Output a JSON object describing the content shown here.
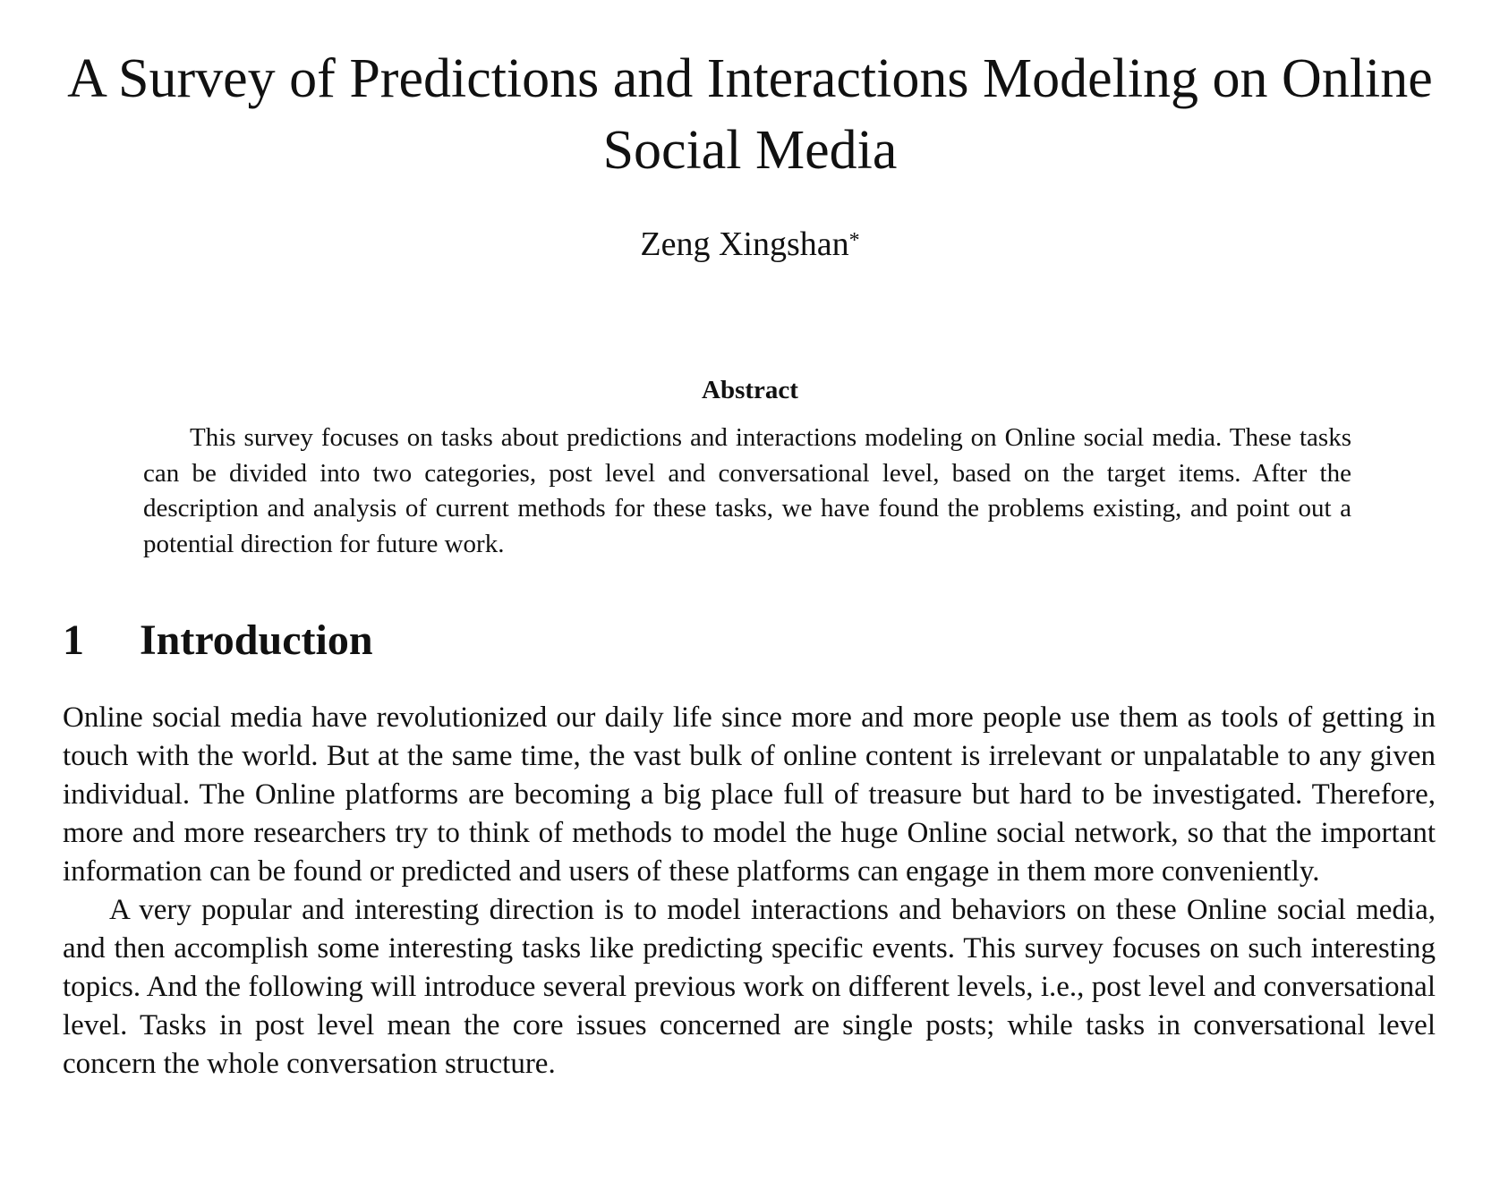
{
  "paper": {
    "title": "A Survey of Predictions and Interactions Modeling on Online Social Media",
    "author": {
      "name": "Zeng Xingshan",
      "mark": "*"
    },
    "abstract": {
      "heading": "Abstract",
      "text": "This survey focuses on tasks about predictions and interactions modeling on Online social media. These tasks can be divided into two categories, post level and conversational level, based on the target items. After the description and analysis of current methods for these tasks, we have found the problems existing, and point out a potential direction for future work."
    },
    "sections": [
      {
        "number": "1",
        "title": "Introduction",
        "paragraphs": [
          "Online social media have revolutionized our daily life since more and more people use them as tools of getting in touch with the world. But at the same time, the vast bulk of online content is irrelevant or unpalatable to any given individual. The Online platforms are becoming a big place full of treasure but hard to be investigated. Therefore, more and more researchers try to think of methods to model the huge Online social network, so that the important information can be found or predicted and users of these platforms can engage in them more conveniently.",
          "A very popular and interesting direction is to model interactions and behaviors on these Online social media, and then accomplish some interesting tasks like predicting specific events. This survey focuses on such interesting topics. And the following will introduce several previous work on different levels, i.e., post level and conversational level. Tasks in post level mean the core issues concerned are single posts; while tasks in conversational level concern the whole conversation structure."
        ]
      }
    ]
  }
}
